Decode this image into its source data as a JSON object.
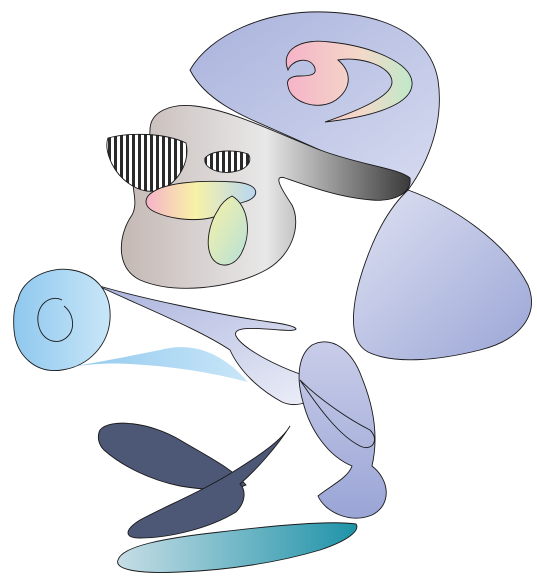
{
  "artwork": {
    "colors": {
      "periwinkle_light": "#dfe2f2",
      "periwinkle": "#a9b2dc",
      "periwinkle_deep": "#9aa5d6",
      "taupe": "#c4b8b4",
      "silver": "#e8e8e8",
      "charcoal": "#3a3a3a",
      "sky_light": "#c9e6f8",
      "sky": "#8fc8ee",
      "slate": "#4d5776",
      "teal": "#1f93a8",
      "teal_light": "#c6dde6",
      "rainbow_pink": "#f6b3c8",
      "rainbow_yellow": "#f8f2a6",
      "rainbow_green": "#bfe9c9",
      "rainbow_blue": "#b6d6f2"
    },
    "stripes": "#2a2a2a"
  }
}
